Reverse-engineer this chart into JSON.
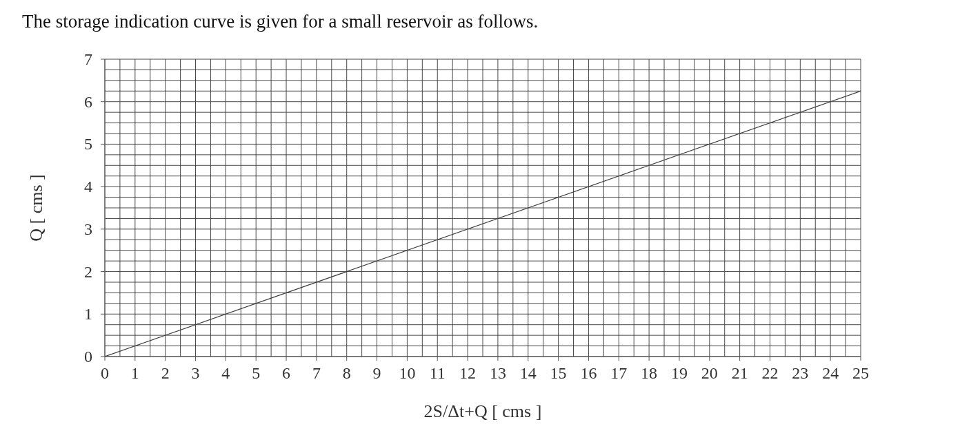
{
  "chart_data": {
    "type": "line",
    "title": "The storage indication curve is given for a small reservoir as follows.",
    "xlabel": "2S/Δt+Q [   cms   ]",
    "ylabel": "Q [   cms   ]",
    "x": [
      0,
      25
    ],
    "series": [
      {
        "color": "#404040",
        "values": [
          0,
          6.25
        ]
      }
    ],
    "xlim": [
      0,
      25
    ],
    "ylim": [
      0,
      7
    ],
    "xticks": [
      0,
      {
        "value": 0.5,
        "label": null
      },
      1,
      {
        "value": 1.5,
        "label": null
      },
      2,
      {
        "value": 2.5,
        "label": null
      },
      3,
      {
        "value": 3.5,
        "label": null
      },
      4,
      {
        "value": 4.5,
        "label": null
      },
      5,
      {
        "value": 5.5,
        "label": null
      },
      6,
      {
        "value": 6.5,
        "label": null
      },
      7,
      {
        "value": 7.5,
        "label": null
      },
      8,
      {
        "value": 8.5,
        "label": null
      },
      9,
      {
        "value": 9.5,
        "label": null
      },
      10,
      {
        "value": 10.5,
        "label": null
      },
      11,
      {
        "value": 11.5,
        "label": null
      },
      12,
      {
        "value": 12.5,
        "label": null
      },
      13,
      {
        "value": 13.5,
        "label": null
      },
      14,
      {
        "value": 14.5,
        "label": null
      },
      15,
      {
        "value": 15.5,
        "label": null
      },
      16,
      {
        "value": 16.5,
        "label": null
      },
      17,
      {
        "value": 17.5,
        "label": null
      },
      18,
      {
        "value": 18.5,
        "label": null
      },
      19,
      {
        "value": 19.5,
        "label": null
      },
      20,
      {
        "value": 20.5,
        "label": null
      },
      21,
      {
        "value": 21.5,
        "label": null
      },
      22,
      {
        "value": 22.5,
        "label": null
      },
      23,
      {
        "value": 23.5,
        "label": null
      },
      24,
      {
        "value": 24.5,
        "label": null
      },
      25
    ],
    "yticks": [
      0,
      {
        "value": 0.25,
        "label": null
      },
      {
        "value": 0.5,
        "label": null
      },
      {
        "value": 0.75,
        "label": null
      },
      1,
      {
        "value": 1.25,
        "label": null
      },
      {
        "value": 1.5,
        "label": null
      },
      {
        "value": 1.75,
        "label": null
      },
      2,
      {
        "value": 2.25,
        "label": null
      },
      {
        "value": 2.5,
        "label": null
      },
      {
        "value": 2.75,
        "label": null
      },
      3,
      {
        "value": 3.25,
        "label": null
      },
      {
        "value": 3.5,
        "label": null
      },
      {
        "value": 3.75,
        "label": null
      },
      4,
      {
        "value": 4.25,
        "label": null
      },
      {
        "value": 4.5,
        "label": null
      },
      {
        "value": 4.75,
        "label": null
      },
      5,
      {
        "value": 5.25,
        "label": null
      },
      {
        "value": 5.5,
        "label": null
      },
      {
        "value": 5.75,
        "label": null
      },
      6,
      {
        "value": 6.25,
        "label": null
      },
      {
        "value": 6.5,
        "label": null
      },
      {
        "value": 6.75,
        "label": null
      },
      7
    ],
    "grid": true,
    "marker": "none",
    "line_style": "solid",
    "legend": false
  }
}
